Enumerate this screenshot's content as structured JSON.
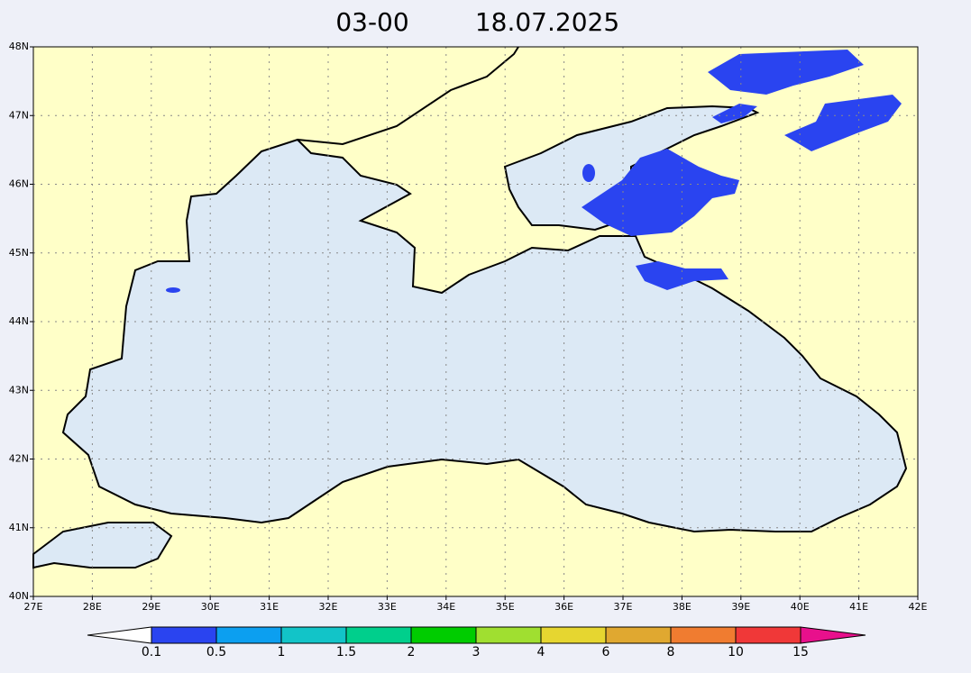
{
  "title_time": "03-00",
  "title_date": "18.07.2025",
  "lat_labels": [
    "48N",
    "47N",
    "46N",
    "45N",
    "44N",
    "43N",
    "42N",
    "41N",
    "40N"
  ],
  "lon_labels": [
    "27E",
    "28E",
    "29E",
    "30E",
    "31E",
    "32E",
    "33E",
    "34E",
    "35E",
    "36E",
    "37E",
    "38E",
    "39E",
    "40E",
    "41E",
    "42E"
  ],
  "legend": {
    "labels": [
      "0.1",
      "0.5",
      "1",
      "1.5",
      "2",
      "3",
      "4",
      "6",
      "8",
      "10",
      "15"
    ],
    "colors": [
      "#ffffff",
      "#2a44f0",
      "#0c9ff0",
      "#12c4c8",
      "#00cf8c",
      "#00cc00",
      "#a0df30",
      "#e6d630",
      "#e0a830",
      "#f07c30",
      "#f03838",
      "#e8108c"
    ]
  }
}
